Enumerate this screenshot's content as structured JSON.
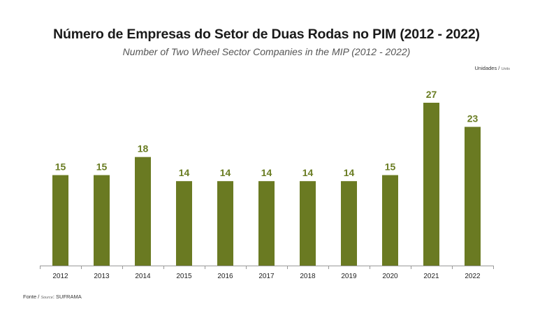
{
  "title": "Número de Empresas do Setor de Duas Rodas no PIM (2012 - 2022)",
  "subtitle": "Number of Two Wheel Sector Companies in the MIP (2012 - 2022)",
  "units": {
    "pt": "Unidades / ",
    "en": "Units"
  },
  "source": {
    "pt": "Fonte / ",
    "en": "Source",
    "value": ": SUFRAMA"
  },
  "colors": {
    "bar": "#6a7a22",
    "label": "#6a7d23",
    "axis": "#999999"
  },
  "chart_data": {
    "type": "bar",
    "title": "Número de Empresas do Setor de Duas Rodas no PIM (2012 - 2022)",
    "subtitle": "Number of Two Wheel Sector Companies in the MIP (2012 - 2022)",
    "xlabel": "",
    "ylabel": "",
    "categories": [
      "2012",
      "2013",
      "2014",
      "2015",
      "2016",
      "2017",
      "2018",
      "2019",
      "2020",
      "2021",
      "2022"
    ],
    "values": [
      15,
      15,
      18,
      14,
      14,
      14,
      14,
      14,
      15,
      27,
      23
    ],
    "ylim": [
      0,
      27
    ],
    "grid": false,
    "legend": "none"
  }
}
